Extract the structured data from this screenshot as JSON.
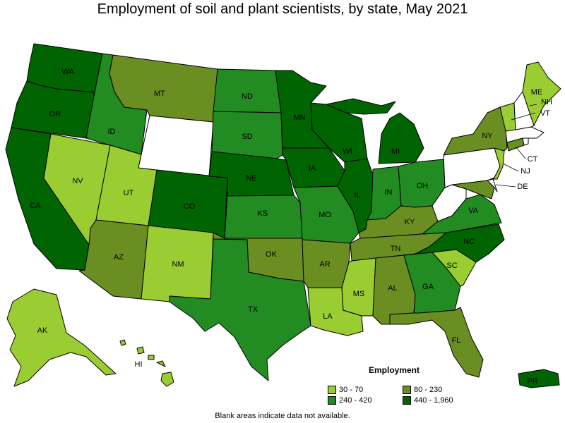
{
  "title": "Employment of soil and plant scientists, by state, May 2021",
  "legend": {
    "title": "Employment",
    "items": [
      {
        "label": "30 - 70",
        "color": "#9acd32"
      },
      {
        "label": "80 - 230",
        "color": "#6b8e23"
      },
      {
        "label": "240 - 420",
        "color": "#228b22"
      },
      {
        "label": "440 - 1,960",
        "color": "#006400"
      }
    ]
  },
  "footnote": "Blank areas indicate data not available.",
  "states": {
    "WA": {
      "label": "WA",
      "color": "#006400"
    },
    "OR": {
      "label": "OR",
      "color": "#006400"
    },
    "CA": {
      "label": "CA",
      "color": "#006400"
    },
    "ID": {
      "label": "ID",
      "color": "#228b22"
    },
    "NV": {
      "label": "NV",
      "color": "#9acd32"
    },
    "UT": {
      "label": "UT",
      "color": "#9acd32"
    },
    "AZ": {
      "label": "AZ",
      "color": "#6b8e23"
    },
    "MT": {
      "label": "MT",
      "color": "#6b8e23"
    },
    "WY": {
      "label": "",
      "color": "#ffffff"
    },
    "CO": {
      "label": "CO",
      "color": "#006400"
    },
    "NM": {
      "label": "NM",
      "color": "#9acd32"
    },
    "ND": {
      "label": "ND",
      "color": "#228b22"
    },
    "SD": {
      "label": "SD",
      "color": "#228b22"
    },
    "NE": {
      "label": "NE",
      "color": "#006400"
    },
    "KS": {
      "label": "KS",
      "color": "#228b22"
    },
    "OK": {
      "label": "OK",
      "color": "#6b8e23"
    },
    "TX": {
      "label": "TX",
      "color": "#228b22"
    },
    "MN": {
      "label": "MN",
      "color": "#006400"
    },
    "IA": {
      "label": "IA",
      "color": "#006400"
    },
    "MO": {
      "label": "MO",
      "color": "#228b22"
    },
    "AR": {
      "label": "AR",
      "color": "#6b8e23"
    },
    "LA": {
      "label": "LA",
      "color": "#9acd32"
    },
    "WI": {
      "label": "WI",
      "color": "#006400"
    },
    "IL": {
      "label": "IL",
      "color": "#006400"
    },
    "MI": {
      "label": "MI",
      "color": "#006400"
    },
    "IN": {
      "label": "IN",
      "color": "#228b22"
    },
    "OH": {
      "label": "OH",
      "color": "#228b22"
    },
    "KY": {
      "label": "KY",
      "color": "#6b8e23"
    },
    "TN": {
      "label": "TN",
      "color": "#6b8e23"
    },
    "MS": {
      "label": "MS",
      "color": "#9acd32"
    },
    "AL": {
      "label": "AL",
      "color": "#6b8e23"
    },
    "GA": {
      "label": "GA",
      "color": "#228b22"
    },
    "FL": {
      "label": "FL",
      "color": "#6b8e23"
    },
    "SC": {
      "label": "SC",
      "color": "#9acd32"
    },
    "NC": {
      "label": "NC",
      "color": "#006400"
    },
    "VA": {
      "label": "VA",
      "color": "#228b22"
    },
    "WV": {
      "label": "",
      "color": "#ffffff"
    },
    "MD": {
      "label": "",
      "color": "#6b8e23"
    },
    "DE": {
      "label": "DE",
      "color": "#ffffff"
    },
    "NJ": {
      "label": "NJ",
      "color": "#9acd32"
    },
    "PA": {
      "label": "",
      "color": "#ffffff"
    },
    "NY": {
      "label": "NY",
      "color": "#6b8e23"
    },
    "CT": {
      "label": "CT",
      "color": "#6b8e23"
    },
    "RI": {
      "label": "",
      "color": "#ffffff"
    },
    "MA": {
      "label": "",
      "color": "#ffffff"
    },
    "VT": {
      "label": "VT",
      "color": "#9acd32"
    },
    "NH": {
      "label": "NH",
      "color": "#ffffff"
    },
    "ME": {
      "label": "ME",
      "color": "#9acd32"
    },
    "AK": {
      "label": "AK",
      "color": "#9acd32"
    },
    "HI": {
      "label": "HI",
      "color": "#9acd32"
    },
    "PR": {
      "label": "PR",
      "color": "#006400"
    }
  }
}
